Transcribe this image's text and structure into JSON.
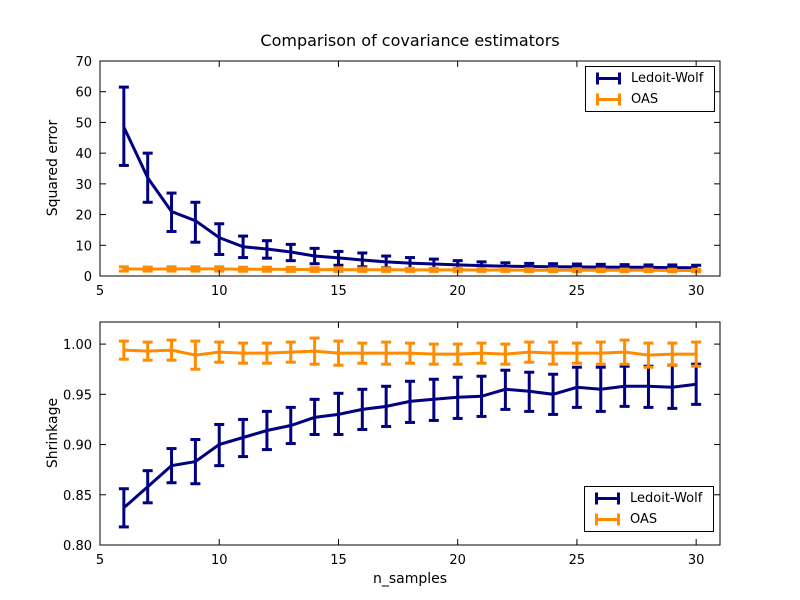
{
  "figure": {
    "background": "#ffffff",
    "accent_colors": {
      "ledoit_wolf": "#000080",
      "oas": "#ff8c00"
    }
  },
  "legend": {
    "entries": [
      {
        "label": "Ledoit-Wolf"
      },
      {
        "label": "OAS"
      }
    ]
  },
  "chart_data": [
    {
      "type": "line",
      "title": "Comparison of covariance estimators",
      "ylabel": "Squared error",
      "xlabel": "",
      "grid": false,
      "legend_position": "upper right",
      "xlim": [
        5,
        31
      ],
      "ylim": [
        0,
        70
      ],
      "xticks": [
        5,
        10,
        15,
        20,
        25,
        30
      ],
      "xtick_labels": [
        "5",
        "10",
        "15",
        "20",
        "25",
        "30"
      ],
      "yticks": [
        0,
        10,
        20,
        30,
        40,
        50,
        60,
        70
      ],
      "ytick_labels": [
        "0",
        "10",
        "20",
        "30",
        "40",
        "50",
        "60",
        "70"
      ],
      "x": [
        6,
        7,
        8,
        9,
        10,
        11,
        12,
        13,
        14,
        15,
        16,
        17,
        18,
        19,
        20,
        21,
        22,
        23,
        24,
        25,
        26,
        27,
        28,
        29,
        30
      ],
      "series": [
        {
          "name": "Ledoit-Wolf",
          "color": "#000080",
          "y": [
            48.5,
            32,
            21,
            18,
            12.5,
            9.5,
            8.8,
            7.8,
            6.5,
            5.9,
            5.2,
            4.6,
            4.2,
            3.9,
            3.6,
            3.4,
            3.2,
            3.1,
            3.0,
            2.95,
            2.9,
            2.85,
            2.8,
            2.75,
            2.7
          ],
          "lo": [
            36,
            24,
            14.5,
            11,
            7,
            6,
            5.8,
            5,
            4,
            3.5,
            3,
            2.7,
            2.4,
            2.3,
            2.2,
            2.2,
            2.1,
            2.1,
            2.0,
            2.0,
            2.0,
            2.0,
            1.9,
            1.9,
            1.9
          ],
          "hi": [
            61.5,
            40,
            27,
            24,
            17,
            13,
            11.5,
            10.3,
            9,
            8,
            7.5,
            6.5,
            6,
            5.5,
            5,
            4.6,
            4.3,
            4.1,
            4.0,
            3.9,
            3.8,
            3.7,
            3.6,
            3.6,
            3.5
          ]
        },
        {
          "name": "OAS",
          "color": "#ff8c00",
          "y": [
            2.3,
            2.25,
            2.3,
            2.3,
            2.3,
            2.2,
            2.2,
            2.15,
            2.1,
            2.1,
            2.05,
            2.05,
            2.0,
            2.0,
            2.0,
            1.95,
            1.95,
            1.9,
            1.9,
            1.9,
            1.85,
            1.85,
            1.85,
            1.8,
            1.8
          ],
          "lo": [
            1.6,
            1.6,
            1.6,
            1.6,
            1.6,
            1.55,
            1.55,
            1.5,
            1.5,
            1.5,
            1.5,
            1.5,
            1.5,
            1.5,
            1.5,
            1.5,
            1.5,
            1.45,
            1.45,
            1.45,
            1.45,
            1.45,
            1.45,
            1.4,
            1.4
          ],
          "hi": [
            3.0,
            2.9,
            3.0,
            3.0,
            3.0,
            2.85,
            2.85,
            2.8,
            2.7,
            2.7,
            2.6,
            2.6,
            2.5,
            2.5,
            2.5,
            2.4,
            2.4,
            2.35,
            2.35,
            2.35,
            2.25,
            2.25,
            2.25,
            2.2,
            2.2
          ]
        }
      ]
    },
    {
      "type": "line",
      "title": "",
      "ylabel": "Shrinkage",
      "xlabel": "n_samples",
      "grid": false,
      "legend_position": "lower right",
      "xlim": [
        5,
        31
      ],
      "ylim": [
        0.8,
        1.022
      ],
      "xticks": [
        5,
        10,
        15,
        20,
        25,
        30
      ],
      "xtick_labels": [
        "5",
        "10",
        "15",
        "20",
        "25",
        "30"
      ],
      "yticks": [
        0.8,
        0.85,
        0.9,
        0.95,
        1.0
      ],
      "ytick_labels": [
        "0.80",
        "0.85",
        "0.90",
        "0.95",
        "1.00"
      ],
      "x": [
        6,
        7,
        8,
        9,
        10,
        11,
        12,
        13,
        14,
        15,
        16,
        17,
        18,
        19,
        20,
        21,
        22,
        23,
        24,
        25,
        26,
        27,
        28,
        29,
        30
      ],
      "series": [
        {
          "name": "Ledoit-Wolf",
          "color": "#000080",
          "y": [
            0.837,
            0.858,
            0.879,
            0.883,
            0.9,
            0.907,
            0.914,
            0.919,
            0.927,
            0.93,
            0.935,
            0.938,
            0.943,
            0.945,
            0.947,
            0.948,
            0.955,
            0.953,
            0.95,
            0.957,
            0.955,
            0.958,
            0.958,
            0.957,
            0.96
          ],
          "lo": [
            0.818,
            0.842,
            0.862,
            0.861,
            0.879,
            0.888,
            0.895,
            0.901,
            0.91,
            0.91,
            0.915,
            0.918,
            0.922,
            0.924,
            0.926,
            0.928,
            0.935,
            0.933,
            0.93,
            0.937,
            0.933,
            0.938,
            0.937,
            0.936,
            0.94
          ],
          "hi": [
            0.856,
            0.874,
            0.896,
            0.905,
            0.92,
            0.925,
            0.933,
            0.937,
            0.945,
            0.951,
            0.955,
            0.958,
            0.963,
            0.965,
            0.967,
            0.968,
            0.974,
            0.972,
            0.97,
            0.977,
            0.977,
            0.978,
            0.978,
            0.979,
            0.98
          ]
        },
        {
          "name": "OAS",
          "color": "#ff8c00",
          "y": [
            0.994,
            0.993,
            0.994,
            0.989,
            0.992,
            0.991,
            0.991,
            0.992,
            0.993,
            0.991,
            0.991,
            0.991,
            0.991,
            0.99,
            0.99,
            0.991,
            0.99,
            0.992,
            0.991,
            0.991,
            0.991,
            0.992,
            0.989,
            0.99,
            0.99
          ],
          "lo": [
            0.985,
            0.984,
            0.984,
            0.975,
            0.982,
            0.981,
            0.981,
            0.982,
            0.98,
            0.979,
            0.981,
            0.98,
            0.981,
            0.98,
            0.98,
            0.981,
            0.98,
            0.982,
            0.98,
            0.981,
            0.98,
            0.98,
            0.977,
            0.979,
            0.978
          ],
          "hi": [
            1.003,
            1.002,
            1.004,
            1.003,
            1.002,
            1.001,
            1.001,
            1.002,
            1.006,
            1.003,
            1.001,
            1.002,
            1.001,
            1.0,
            1.0,
            1.001,
            1.0,
            1.002,
            1.002,
            1.001,
            1.002,
            1.004,
            1.001,
            1.001,
            1.002
          ]
        }
      ]
    }
  ]
}
